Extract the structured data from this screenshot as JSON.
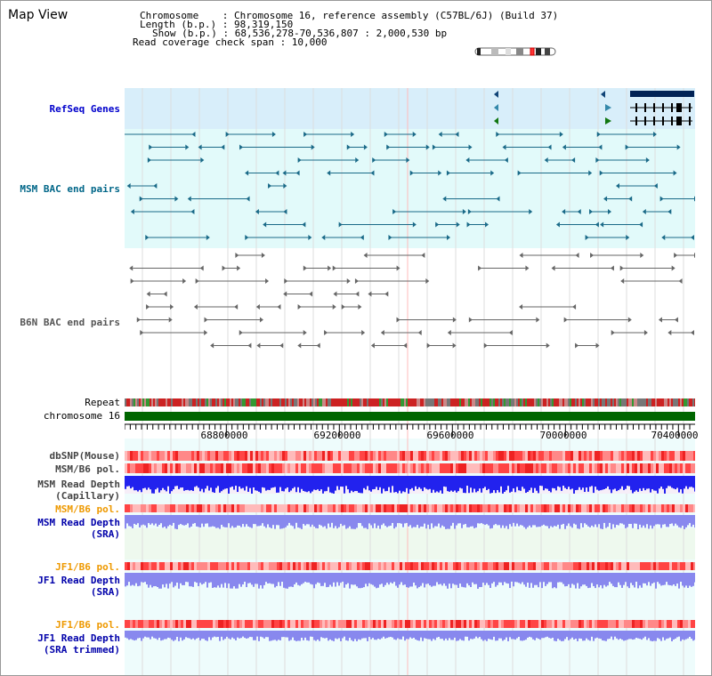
{
  "page": {
    "title": "Map View"
  },
  "info": {
    "chromosome_label": "Chromosome    : Chromosome 16, reference assembly (C57BL/6J) (Build 37)",
    "length_label": "Length (b.p.) : 98,319,150",
    "show_label": "Show (b.p.) : 68,536,278-70,536,807 : 2,000,530 bp",
    "coverage_label": "Read coverage check span : 10,000"
  },
  "tracks": {
    "refseq": "RefSeq Genes",
    "msm_bac": "MSM BAC end pairs",
    "b6n_bac": "B6N BAC end pairs",
    "repeat": "Repeat",
    "chromosome": "chromosome 16",
    "dbsnp": "dbSNP(Mouse)",
    "msm_b6_pol_1": "MSM/B6 pol.",
    "msm_depth_cap": "MSM Read Depth\n(Capillary)",
    "msm_b6_pol_2": "MSM/B6 pol.",
    "msm_depth_sra": "MSM Read Depth\n(SRA)",
    "jf1_b6_pol_1": "JF1/B6 pol.",
    "jf1_depth_sra": "JF1 Read Depth\n(SRA)",
    "jf1_b6_pol_2": "JF1/B6 pol.",
    "jf1_depth_trim": "JF1 Read Depth\n(SRA trimmed)"
  },
  "axis": {
    "ticks": [
      "68800000",
      "69200000",
      "69600000",
      "70000000",
      "70400000"
    ]
  },
  "colors": {
    "refseq_label": "#0000cc",
    "msm_label": "#006688",
    "b6n_label": "#555555",
    "orange_label": "#ee9900",
    "blue_label": "#0000aa",
    "refseq_bg": "#d8eefa",
    "msm_bg": "#e2fafa",
    "depth_blue": "#2222ee",
    "depth_lavender": "#8888ee",
    "chromosome_green": "#006600"
  }
}
